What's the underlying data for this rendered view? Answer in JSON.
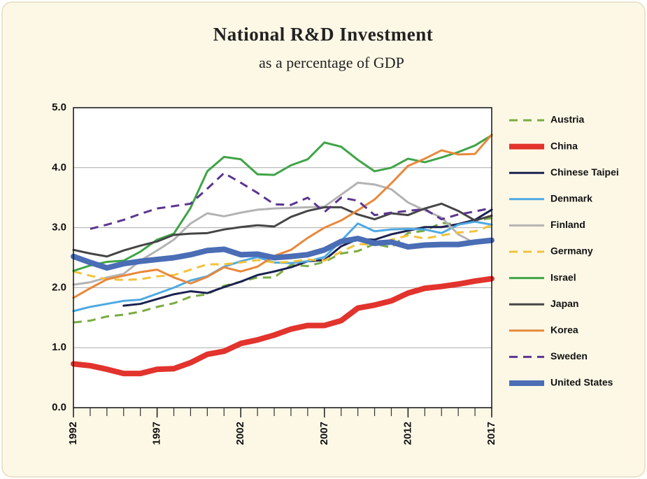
{
  "chart_data": {
    "type": "line",
    "title": "National R&D Investment",
    "subtitle": "as a percentage of GDP",
    "x": [
      1992,
      1993,
      1994,
      1995,
      1996,
      1997,
      1998,
      1999,
      2000,
      2001,
      2002,
      2003,
      2004,
      2005,
      2006,
      2007,
      2008,
      2009,
      2010,
      2011,
      2012,
      2013,
      2014,
      2015,
      2016,
      2017
    ],
    "xlim": [
      1992,
      2017
    ],
    "xticks": [
      1992,
      1997,
      2002,
      2007,
      2012,
      2017
    ],
    "ylim": [
      0,
      5
    ],
    "yticks": [
      {
        "value": 0,
        "label": "0.0"
      },
      {
        "value": 1,
        "label": "1.0"
      },
      {
        "value": 2,
        "label": "2.0"
      },
      {
        "value": 3,
        "label": "3.0"
      },
      {
        "value": 4,
        "label": "4.0"
      },
      {
        "value": 5,
        "label": "5.0"
      }
    ],
    "grid": true,
    "legend": "right",
    "series": [
      {
        "name": "Austria",
        "color": "#7aab43",
        "dashed": true,
        "line_width": 3,
        "values": [
          1.42,
          1.45,
          1.52,
          1.55,
          1.6,
          1.68,
          1.74,
          1.85,
          1.89,
          2.03,
          2.1,
          2.17,
          2.17,
          2.38,
          2.36,
          2.43,
          2.57,
          2.61,
          2.73,
          2.67,
          2.91,
          2.95,
          3.08,
          3.05,
          3.12,
          3.16
        ]
      },
      {
        "name": "China",
        "color": "#e2332d",
        "dashed": false,
        "line_width": 8,
        "values": [
          0.73,
          0.7,
          0.64,
          0.57,
          0.57,
          0.64,
          0.65,
          0.75,
          0.89,
          0.94,
          1.07,
          1.13,
          1.21,
          1.31,
          1.37,
          1.37,
          1.45,
          1.66,
          1.71,
          1.78,
          1.91,
          1.99,
          2.02,
          2.06,
          2.11,
          2.15
        ]
      },
      {
        "name": "Chinese Taipei",
        "color": "#1b2250",
        "dashed": false,
        "line_width": 3,
        "values": [
          null,
          null,
          null,
          1.7,
          1.73,
          1.81,
          1.89,
          1.94,
          1.91,
          2.01,
          2.1,
          2.21,
          2.27,
          2.34,
          2.44,
          2.46,
          2.69,
          2.81,
          2.8,
          2.89,
          2.95,
          3.01,
          3.01,
          3.06,
          3.13,
          3.3
        ]
      },
      {
        "name": "Denmark",
        "color": "#4fa9e2",
        "dashed": false,
        "line_width": 3,
        "values": [
          1.61,
          1.68,
          1.73,
          1.78,
          1.8,
          1.9,
          2.0,
          2.12,
          2.19,
          2.35,
          2.44,
          2.51,
          2.42,
          2.41,
          2.44,
          2.51,
          2.78,
          3.07,
          2.94,
          2.97,
          2.98,
          2.97,
          2.91,
          3.05,
          3.1,
          3.05
        ]
      },
      {
        "name": "Finland",
        "color": "#b3b3b3",
        "dashed": false,
        "line_width": 3,
        "values": [
          2.05,
          2.09,
          2.17,
          2.23,
          2.45,
          2.62,
          2.8,
          3.07,
          3.24,
          3.19,
          3.25,
          3.3,
          3.32,
          3.33,
          3.34,
          3.35,
          3.55,
          3.75,
          3.72,
          3.64,
          3.42,
          3.29,
          3.17,
          2.89,
          2.74,
          2.76
        ]
      },
      {
        "name": "Germany",
        "color": "#f2c23a",
        "dashed": true,
        "line_width": 3,
        "values": [
          2.27,
          2.2,
          2.14,
          2.13,
          2.14,
          2.19,
          2.21,
          2.3,
          2.39,
          2.39,
          2.42,
          2.46,
          2.42,
          2.43,
          2.47,
          2.45,
          2.6,
          2.73,
          2.71,
          2.8,
          2.87,
          2.82,
          2.87,
          2.92,
          2.94,
          3.04
        ]
      },
      {
        "name": "Israel",
        "color": "#3fa447",
        "dashed": false,
        "line_width": 3,
        "values": [
          2.28,
          2.37,
          2.43,
          2.45,
          2.6,
          2.8,
          2.9,
          3.33,
          3.94,
          4.18,
          4.14,
          3.89,
          3.88,
          4.04,
          4.14,
          4.42,
          4.35,
          4.13,
          3.94,
          4.0,
          4.15,
          4.09,
          4.17,
          4.26,
          4.37,
          4.54
        ]
      },
      {
        "name": "Japan",
        "color": "#454545",
        "dashed": false,
        "line_width": 3,
        "values": [
          2.63,
          2.57,
          2.52,
          2.62,
          2.7,
          2.77,
          2.88,
          2.9,
          2.91,
          2.97,
          3.01,
          3.04,
          3.02,
          3.18,
          3.28,
          3.34,
          3.34,
          3.22,
          3.14,
          3.24,
          3.21,
          3.32,
          3.4,
          3.28,
          3.12,
          3.2
        ]
      },
      {
        "name": "Korea",
        "color": "#e8883a",
        "dashed": false,
        "line_width": 3,
        "values": [
          1.83,
          1.99,
          2.14,
          2.2,
          2.26,
          2.3,
          2.17,
          2.07,
          2.18,
          2.34,
          2.27,
          2.35,
          2.53,
          2.63,
          2.83,
          3.0,
          3.12,
          3.29,
          3.47,
          3.74,
          4.03,
          4.15,
          4.29,
          4.22,
          4.23,
          4.55
        ]
      },
      {
        "name": "Sweden",
        "color": "#5b3590",
        "dashed": true,
        "line_width": 3,
        "values": [
          null,
          2.98,
          3.05,
          3.13,
          3.23,
          3.32,
          3.36,
          3.4,
          3.65,
          3.91,
          3.75,
          3.58,
          3.39,
          3.38,
          3.5,
          3.26,
          3.5,
          3.45,
          3.21,
          3.25,
          3.28,
          3.31,
          3.14,
          3.22,
          3.27,
          3.33
        ]
      },
      {
        "name": "United States",
        "color": "#4a6db5",
        "dashed": false,
        "line_width": 8,
        "values": [
          2.52,
          2.42,
          2.33,
          2.4,
          2.44,
          2.47,
          2.5,
          2.55,
          2.62,
          2.64,
          2.55,
          2.56,
          2.5,
          2.52,
          2.55,
          2.63,
          2.77,
          2.82,
          2.74,
          2.76,
          2.68,
          2.71,
          2.72,
          2.72,
          2.76,
          2.79
        ]
      }
    ]
  }
}
